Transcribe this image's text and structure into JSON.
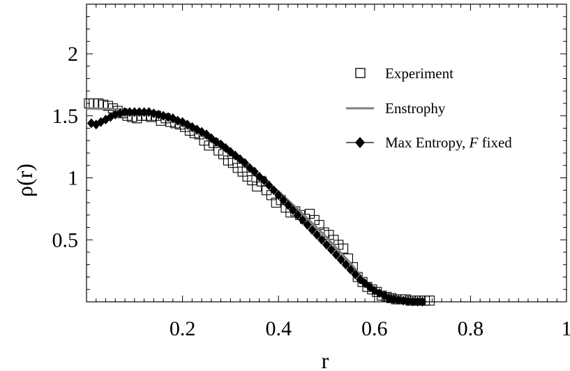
{
  "chart_data": {
    "type": "scatter",
    "xlabel": "r",
    "ylabel": "ρ(r)",
    "xlim": [
      0,
      1
    ],
    "ylim": [
      0,
      2.4
    ],
    "x_ticks": [
      0.2,
      0.4,
      0.6,
      0.8,
      1
    ],
    "x_tick_labels": [
      "0.2",
      "0.4",
      "0.6",
      "0.8",
      "1"
    ],
    "y_ticks": [
      0.5,
      1,
      1.5,
      2
    ],
    "y_tick_labels": [
      "0.5",
      "1",
      "1.5",
      "2"
    ],
    "legend_position": "right",
    "series": [
      {
        "name": "Experiment",
        "style": "open-square",
        "color": "#000000",
        "points": [
          [
            0.005,
            1.6
          ],
          [
            0.015,
            1.6
          ],
          [
            0.025,
            1.6
          ],
          [
            0.035,
            1.59
          ],
          [
            0.045,
            1.58
          ],
          [
            0.055,
            1.56
          ],
          [
            0.065,
            1.54
          ],
          [
            0.075,
            1.52
          ],
          [
            0.085,
            1.5
          ],
          [
            0.095,
            1.49
          ],
          [
            0.105,
            1.48
          ],
          [
            0.115,
            1.5
          ],
          [
            0.125,
            1.5
          ],
          [
            0.135,
            1.49
          ],
          [
            0.145,
            1.5
          ],
          [
            0.155,
            1.46
          ],
          [
            0.165,
            1.48
          ],
          [
            0.175,
            1.45
          ],
          [
            0.185,
            1.44
          ],
          [
            0.195,
            1.43
          ],
          [
            0.205,
            1.41
          ],
          [
            0.215,
            1.38
          ],
          [
            0.225,
            1.36
          ],
          [
            0.235,
            1.35
          ],
          [
            0.245,
            1.3
          ],
          [
            0.255,
            1.26
          ],
          [
            0.265,
            1.28
          ],
          [
            0.275,
            1.22
          ],
          [
            0.285,
            1.19
          ],
          [
            0.295,
            1.14
          ],
          [
            0.305,
            1.12
          ],
          [
            0.315,
            1.08
          ],
          [
            0.325,
            1.05
          ],
          [
            0.335,
            1.01
          ],
          [
            0.345,
            0.98
          ],
          [
            0.355,
            0.93
          ],
          [
            0.365,
            0.97
          ],
          [
            0.375,
            0.9
          ],
          [
            0.385,
            0.86
          ],
          [
            0.395,
            0.8
          ],
          [
            0.405,
            0.82
          ],
          [
            0.415,
            0.76
          ],
          [
            0.425,
            0.72
          ],
          [
            0.435,
            0.73
          ],
          [
            0.445,
            0.7
          ],
          [
            0.455,
            0.67
          ],
          [
            0.465,
            0.71
          ],
          [
            0.475,
            0.66
          ],
          [
            0.485,
            0.62
          ],
          [
            0.495,
            0.56
          ],
          [
            0.505,
            0.54
          ],
          [
            0.515,
            0.5
          ],
          [
            0.525,
            0.46
          ],
          [
            0.535,
            0.43
          ],
          [
            0.545,
            0.35
          ],
          [
            0.555,
            0.28
          ],
          [
            0.565,
            0.2
          ],
          [
            0.575,
            0.16
          ],
          [
            0.585,
            0.12
          ],
          [
            0.595,
            0.1
          ],
          [
            0.605,
            0.08
          ],
          [
            0.615,
            0.05
          ],
          [
            0.625,
            0.04
          ],
          [
            0.635,
            0.03
          ],
          [
            0.645,
            0.02
          ],
          [
            0.655,
            0.02
          ],
          [
            0.665,
            0.02
          ],
          [
            0.675,
            0.01
          ],
          [
            0.685,
            0.01
          ],
          [
            0.695,
            0.01
          ],
          [
            0.705,
            0.01
          ],
          [
            0.715,
            0.01
          ]
        ]
      },
      {
        "name": "Enstrophy",
        "style": "line",
        "color": "#808080",
        "points": [
          [
            0.0,
            1.56
          ],
          [
            0.05,
            1.555
          ],
          [
            0.1,
            1.54
          ],
          [
            0.15,
            1.5
          ],
          [
            0.2,
            1.42
          ],
          [
            0.25,
            1.32
          ],
          [
            0.3,
            1.19
          ],
          [
            0.35,
            1.04
          ],
          [
            0.4,
            0.89
          ],
          [
            0.45,
            0.71
          ],
          [
            0.5,
            0.52
          ],
          [
            0.55,
            0.31
          ],
          [
            0.58,
            0.17
          ],
          [
            0.6,
            0.1
          ],
          [
            0.62,
            0.05
          ],
          [
            0.64,
            0.02
          ],
          [
            0.66,
            0.01
          ],
          [
            0.68,
            0.0
          ],
          [
            0.7,
            0.0
          ]
        ]
      },
      {
        "name": "Max Entropy, F fixed",
        "style": "filled-diamond-line",
        "color": "#000000",
        "points": [
          [
            0.01,
            1.44
          ],
          [
            0.02,
            1.43
          ],
          [
            0.03,
            1.45
          ],
          [
            0.04,
            1.47
          ],
          [
            0.05,
            1.49
          ],
          [
            0.06,
            1.51
          ],
          [
            0.07,
            1.52
          ],
          [
            0.08,
            1.53
          ],
          [
            0.09,
            1.53
          ],
          [
            0.1,
            1.53
          ],
          [
            0.11,
            1.53
          ],
          [
            0.12,
            1.53
          ],
          [
            0.13,
            1.53
          ],
          [
            0.14,
            1.52
          ],
          [
            0.15,
            1.51
          ],
          [
            0.16,
            1.5
          ],
          [
            0.17,
            1.49
          ],
          [
            0.18,
            1.48
          ],
          [
            0.19,
            1.46
          ],
          [
            0.2,
            1.45
          ],
          [
            0.21,
            1.43
          ],
          [
            0.22,
            1.41
          ],
          [
            0.23,
            1.39
          ],
          [
            0.24,
            1.37
          ],
          [
            0.25,
            1.35
          ],
          [
            0.26,
            1.32
          ],
          [
            0.27,
            1.29
          ],
          [
            0.28,
            1.27
          ],
          [
            0.29,
            1.24
          ],
          [
            0.3,
            1.21
          ],
          [
            0.31,
            1.18
          ],
          [
            0.32,
            1.15
          ],
          [
            0.33,
            1.12
          ],
          [
            0.34,
            1.08
          ],
          [
            0.35,
            1.05
          ],
          [
            0.36,
            1.01
          ],
          [
            0.37,
            0.98
          ],
          [
            0.38,
            0.94
          ],
          [
            0.39,
            0.9
          ],
          [
            0.4,
            0.86
          ],
          [
            0.41,
            0.82
          ],
          [
            0.42,
            0.78
          ],
          [
            0.43,
            0.74
          ],
          [
            0.44,
            0.7
          ],
          [
            0.45,
            0.66
          ],
          [
            0.46,
            0.62
          ],
          [
            0.47,
            0.58
          ],
          [
            0.48,
            0.54
          ],
          [
            0.49,
            0.5
          ],
          [
            0.5,
            0.46
          ],
          [
            0.51,
            0.42
          ],
          [
            0.52,
            0.38
          ],
          [
            0.53,
            0.34
          ],
          [
            0.54,
            0.3
          ],
          [
            0.55,
            0.26
          ],
          [
            0.56,
            0.22
          ],
          [
            0.57,
            0.18
          ],
          [
            0.58,
            0.15
          ],
          [
            0.59,
            0.12
          ],
          [
            0.6,
            0.09
          ],
          [
            0.61,
            0.07
          ],
          [
            0.62,
            0.05
          ],
          [
            0.63,
            0.03
          ],
          [
            0.64,
            0.02
          ],
          [
            0.65,
            0.015
          ],
          [
            0.66,
            0.01
          ],
          [
            0.67,
            0.005
          ],
          [
            0.68,
            0.003
          ],
          [
            0.69,
            0.002
          ],
          [
            0.7,
            0.001
          ]
        ]
      }
    ]
  }
}
